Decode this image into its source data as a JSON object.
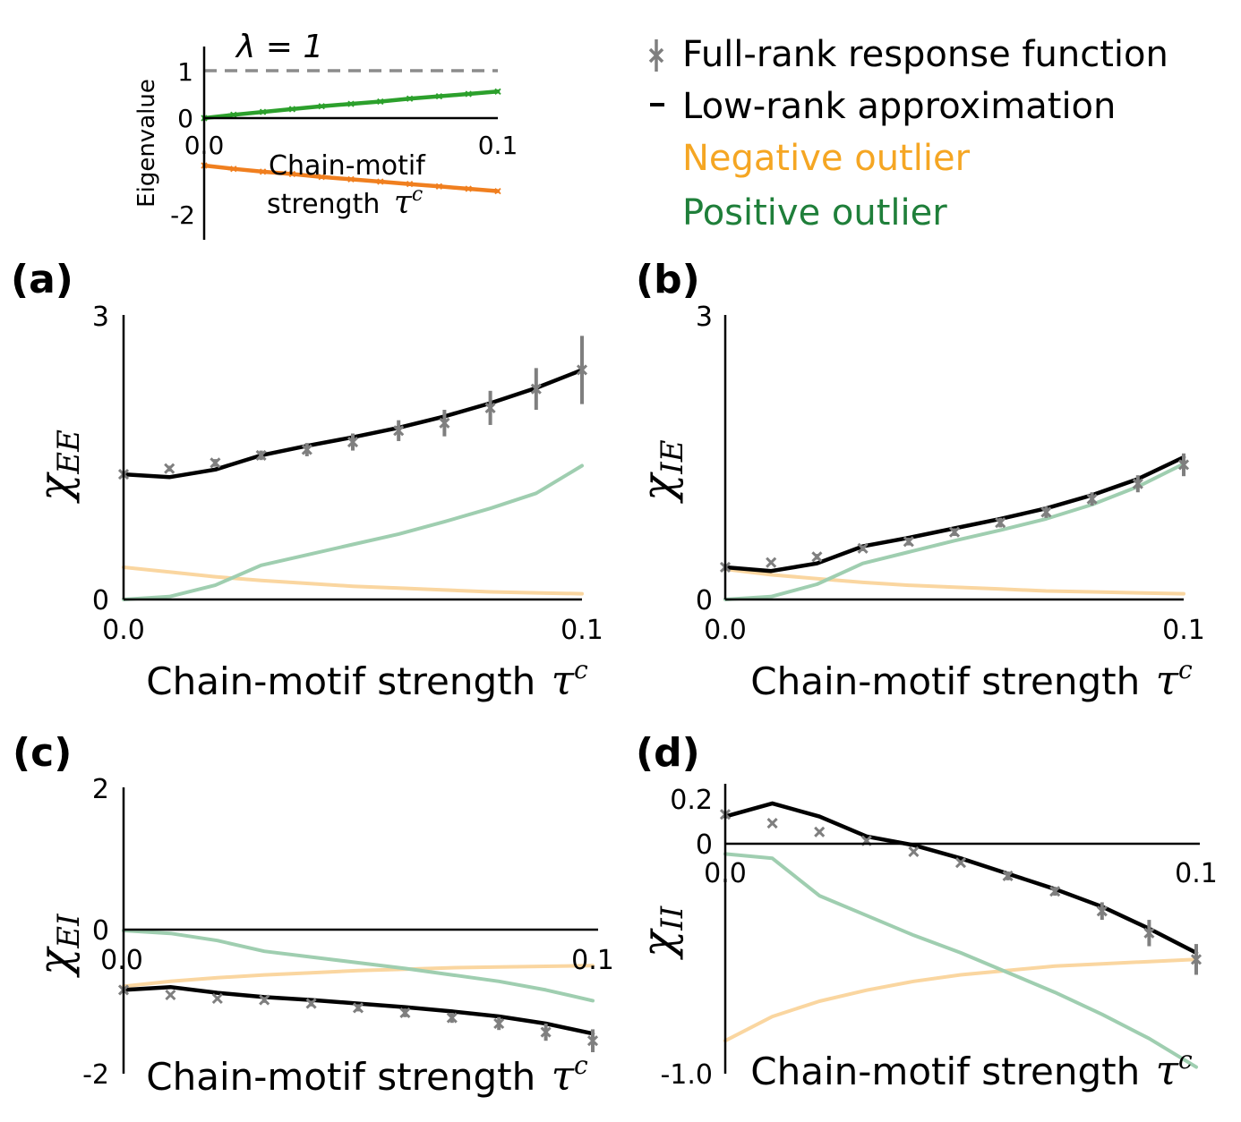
{
  "colors": {
    "full_rank": "#7f7f7f",
    "low_rank": "#000000",
    "negative": "#f5a623",
    "negative_line": "#fad6a0",
    "positive": "#1f7f3a",
    "positive_line": "#9fceb0",
    "inset_green": "#2ca02c",
    "inset_orange": "#f07f1f",
    "dashed": "#8c8c8c"
  },
  "legend": {
    "full_rank": "Full-rank response function",
    "low_rank": "Low-rank approximation",
    "negative": "Negative outlier",
    "positive": "Positive outlier"
  },
  "chart_data": [
    {
      "id": "inset",
      "type": "line",
      "xlabel_line1": "Chain-motif",
      "xlabel_line2": "strength",
      "tau": "τ",
      "tau_sup": "c",
      "ylabel": "Eigenvalue",
      "lambda_label": "λ = 1",
      "xlim": [
        0,
        0.1
      ],
      "ylim": [
        -2.6,
        1.5
      ],
      "xticks": [
        "0.0",
        "0.1"
      ],
      "yticks": [
        "1",
        "0",
        "-2"
      ],
      "x": [
        0,
        0.01,
        0.02,
        0.03,
        0.04,
        0.05,
        0.06,
        0.07,
        0.08,
        0.09,
        0.1
      ],
      "series": [
        {
          "name": "Positive outlier",
          "values": [
            0.0,
            0.07,
            0.13,
            0.19,
            0.25,
            0.3,
            0.35,
            0.41,
            0.46,
            0.51,
            0.56
          ]
        },
        {
          "name": "Negative outlier",
          "values": [
            -1.0,
            -1.07,
            -1.13,
            -1.18,
            -1.24,
            -1.29,
            -1.34,
            -1.39,
            -1.44,
            -1.49,
            -1.54
          ]
        }
      ],
      "reference": 1
    },
    {
      "id": "a",
      "panel_label": "(a)",
      "type": "line",
      "ylabel_main": "χ",
      "ylabel_sub": "EE",
      "xlabel": "Chain-motif strength",
      "tau": "τ",
      "tau_sup": "c",
      "xlim": [
        0,
        0.1
      ],
      "ylim": [
        0,
        3
      ],
      "xticks": [
        "0.0",
        "0.1"
      ],
      "yticks": [
        "3",
        "0"
      ],
      "x": [
        0,
        0.01,
        0.02,
        0.03,
        0.04,
        0.05,
        0.06,
        0.07,
        0.08,
        0.09,
        0.1
      ],
      "full_rank": [
        1.32,
        1.38,
        1.44,
        1.52,
        1.58,
        1.66,
        1.78,
        1.86,
        2.02,
        2.22,
        2.42
      ],
      "full_rank_err": [
        0.02,
        0.03,
        0.04,
        0.05,
        0.07,
        0.09,
        0.11,
        0.14,
        0.18,
        0.22,
        0.36
      ],
      "low_rank": [
        1.32,
        1.29,
        1.37,
        1.52,
        1.62,
        1.71,
        1.81,
        1.93,
        2.07,
        2.23,
        2.42
      ],
      "negative": [
        0.34,
        0.29,
        0.24,
        0.2,
        0.17,
        0.14,
        0.12,
        0.1,
        0.08,
        0.07,
        0.06
      ],
      "positive": [
        0.0,
        0.03,
        0.15,
        0.36,
        0.47,
        0.58,
        0.69,
        0.82,
        0.96,
        1.12,
        1.41
      ]
    },
    {
      "id": "b",
      "panel_label": "(b)",
      "type": "line",
      "ylabel_main": "χ",
      "ylabel_sub": "IE",
      "xlabel": "Chain-motif strength",
      "tau": "τ",
      "tau_sup": "c",
      "xlim": [
        0,
        0.1
      ],
      "ylim": [
        0,
        3
      ],
      "xticks": [
        "0.0",
        "0.1"
      ],
      "yticks": [
        "3",
        "0"
      ],
      "x": [
        0,
        0.01,
        0.02,
        0.03,
        0.04,
        0.05,
        0.06,
        0.07,
        0.08,
        0.09,
        0.1
      ],
      "full_rank": [
        0.34,
        0.39,
        0.45,
        0.54,
        0.61,
        0.71,
        0.81,
        0.92,
        1.06,
        1.22,
        1.42
      ],
      "full_rank_err": [
        0.02,
        0.02,
        0.03,
        0.03,
        0.04,
        0.04,
        0.05,
        0.06,
        0.07,
        0.09,
        0.12
      ],
      "low_rank": [
        0.34,
        0.3,
        0.38,
        0.56,
        0.65,
        0.75,
        0.85,
        0.96,
        1.1,
        1.27,
        1.5
      ],
      "negative": [
        0.32,
        0.26,
        0.22,
        0.18,
        0.15,
        0.13,
        0.11,
        0.09,
        0.08,
        0.07,
        0.06
      ],
      "positive": [
        0.0,
        0.03,
        0.16,
        0.38,
        0.5,
        0.62,
        0.73,
        0.85,
        1.0,
        1.19,
        1.43
      ]
    },
    {
      "id": "c",
      "panel_label": "(c)",
      "type": "line",
      "ylabel_main": "χ",
      "ylabel_sub": "EI",
      "xlabel": "Chain-motif strength",
      "tau": "τ",
      "tau_sup": "c",
      "xlim": [
        0,
        0.1
      ],
      "ylim": [
        -2,
        2
      ],
      "xticks": [
        "0.0",
        "0.1"
      ],
      "yticks": [
        "2",
        "0",
        "-2"
      ],
      "x": [
        0,
        0.01,
        0.02,
        0.03,
        0.04,
        0.05,
        0.06,
        0.07,
        0.08,
        0.09,
        0.1
      ],
      "full_rank": [
        -0.83,
        -0.9,
        -0.95,
        -0.97,
        -1.02,
        -1.08,
        -1.15,
        -1.22,
        -1.3,
        -1.42,
        -1.54
      ],
      "full_rank_err": [
        0.02,
        0.03,
        0.03,
        0.04,
        0.04,
        0.05,
        0.06,
        0.07,
        0.09,
        0.12,
        0.16
      ],
      "low_rank": [
        -0.83,
        -0.79,
        -0.87,
        -0.93,
        -0.97,
        -1.02,
        -1.07,
        -1.13,
        -1.2,
        -1.3,
        -1.44
      ],
      "negative": [
        -0.78,
        -0.71,
        -0.66,
        -0.62,
        -0.59,
        -0.56,
        -0.54,
        -0.52,
        -0.51,
        -0.5,
        -0.49
      ],
      "positive": [
        0.0,
        -0.04,
        -0.14,
        -0.29,
        -0.37,
        -0.45,
        -0.53,
        -0.62,
        -0.71,
        -0.83,
        -0.98
      ]
    },
    {
      "id": "d",
      "panel_label": "(d)",
      "type": "line",
      "ylabel_main": "χ",
      "ylabel_sub": "II",
      "xlabel": "Chain-motif strength",
      "tau": "τ",
      "tau_sup": "c",
      "xlim": [
        0,
        0.1
      ],
      "ylim": [
        -1.0,
        0.25
      ],
      "xticks": [
        "0.0",
        "0.1"
      ],
      "yticks": [
        "0.2",
        "0",
        "-1.0"
      ],
      "x": [
        0,
        0.01,
        0.02,
        0.03,
        0.04,
        0.05,
        0.06,
        0.07,
        0.08,
        0.09,
        0.1
      ],
      "full_rank": [
        0.18,
        0.14,
        0.1,
        0.06,
        0.01,
        -0.04,
        -0.1,
        -0.17,
        -0.26,
        -0.36,
        -0.48
      ],
      "full_rank_err": [
        0.01,
        0.01,
        0.01,
        0.01,
        0.01,
        0.01,
        0.02,
        0.02,
        0.04,
        0.06,
        0.07
      ],
      "low_rank": [
        0.17,
        0.23,
        0.17,
        0.08,
        0.04,
        -0.02,
        -0.09,
        -0.16,
        -0.24,
        -0.34,
        -0.45
      ],
      "negative": [
        -0.85,
        -0.74,
        -0.67,
        -0.62,
        -0.58,
        -0.55,
        -0.53,
        -0.51,
        -0.5,
        -0.49,
        -0.48
      ],
      "positive": [
        0.0,
        -0.02,
        -0.19,
        -0.28,
        -0.37,
        -0.45,
        -0.54,
        -0.63,
        -0.73,
        -0.84,
        -0.97
      ]
    }
  ]
}
